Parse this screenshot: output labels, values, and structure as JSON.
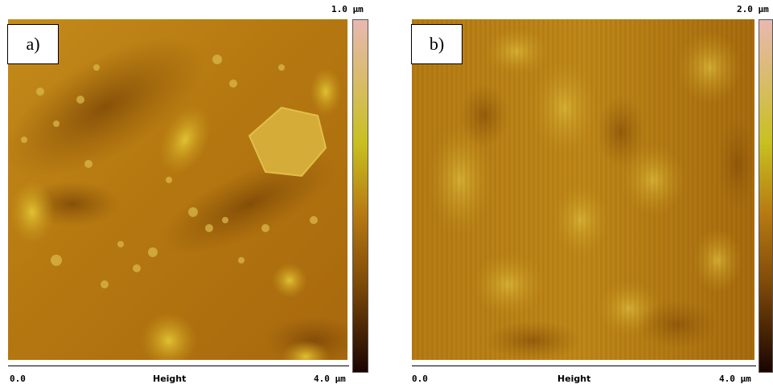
{
  "panels": [
    {
      "label": "a)",
      "z_max": "1.0 µm",
      "x_min": "0.0",
      "x_label": "Height",
      "x_max": "4.0 µm"
    },
    {
      "label": "b)",
      "z_max": "2.0 µm",
      "x_min": "0.0",
      "x_label": "Height",
      "x_max": "4.0 µm"
    }
  ],
  "colors": {
    "base": "#b77a12",
    "highlight": "#d8c02a",
    "shadow": "#7e4a08",
    "scale_top": "#e8b8b0",
    "scale_mid": "#c8c020",
    "scale_bottom": "#1a0402"
  }
}
